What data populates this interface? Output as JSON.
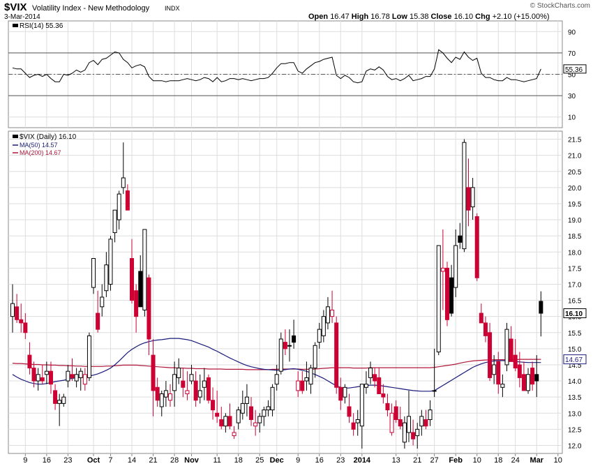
{
  "header": {
    "symbol": "$VIX",
    "name": "Volatility Index - New Methodology",
    "exchange": "INDX",
    "date": "3-Mar-2014",
    "watermark": "© StockCharts.com",
    "ohlc": {
      "open_label": "Open",
      "open": "16.47",
      "high_label": "High",
      "high": "16.78",
      "low_label": "Low",
      "low": "15.38",
      "close_label": "Close",
      "close": "16.10",
      "chg_label": "Chg",
      "chg": "+2.10 (+15.00%)"
    }
  },
  "rsi_panel": {
    "legend": "RSI(14) 55.36",
    "current_label": "55.36",
    "ticks": [
      90,
      70,
      50,
      30,
      10
    ],
    "ylim": [
      0,
      100
    ],
    "levels": [
      70,
      50,
      30
    ]
  },
  "price_panel": {
    "legend_main": "$VIX (Daily) 16.10",
    "legend_ma50": "MA(50) 14.57",
    "legend_ma200": "MA(200) 14.67",
    "current_label": "16.10",
    "ma_current_label": "14.67",
    "ticks": [
      "21.5",
      "21.0",
      "20.5",
      "20.0",
      "19.5",
      "19.0",
      "18.5",
      "18.0",
      "17.5",
      "17.0",
      "16.5",
      "16.0",
      "15.5",
      "15.0",
      "14.5",
      "14.0",
      "13.5",
      "13.0",
      "12.5",
      "12.0"
    ],
    "ylim": [
      11.75,
      21.75
    ]
  },
  "x_axis": {
    "labels": [
      {
        "text": "9",
        "i": 3,
        "bold": false
      },
      {
        "text": "16",
        "i": 8,
        "bold": false
      },
      {
        "text": "23",
        "i": 13,
        "bold": false
      },
      {
        "text": "Oct",
        "i": 19,
        "bold": true
      },
      {
        "text": "7",
        "i": 23,
        "bold": false
      },
      {
        "text": "14",
        "i": 28,
        "bold": false
      },
      {
        "text": "21",
        "i": 33,
        "bold": false
      },
      {
        "text": "28",
        "i": 38,
        "bold": false
      },
      {
        "text": "Nov",
        "i": 42,
        "bold": true
      },
      {
        "text": "11",
        "i": 48,
        "bold": false
      },
      {
        "text": "18",
        "i": 53,
        "bold": false
      },
      {
        "text": "25",
        "i": 58,
        "bold": false
      },
      {
        "text": "Dec",
        "i": 62,
        "bold": true
      },
      {
        "text": "9",
        "i": 67,
        "bold": false
      },
      {
        "text": "16",
        "i": 72,
        "bold": false
      },
      {
        "text": "23",
        "i": 77,
        "bold": false
      },
      {
        "text": "2014",
        "i": 82,
        "bold": true
      },
      {
        "text": "13",
        "i": 90,
        "bold": false
      },
      {
        "text": "21",
        "i": 95,
        "bold": false
      },
      {
        "text": "27",
        "i": 99,
        "bold": false
      },
      {
        "text": "Feb",
        "i": 104,
        "bold": true
      },
      {
        "text": "10",
        "i": 109,
        "bold": false
      },
      {
        "text": "18",
        "i": 114,
        "bold": false
      },
      {
        "text": "24",
        "i": 118,
        "bold": false
      },
      {
        "text": "Mar",
        "i": 123,
        "bold": true
      },
      {
        "text": "10",
        "i": 128,
        "bold": false
      }
    ]
  },
  "colors": {
    "up": "#000000",
    "down": "#cc0033",
    "ma50": "#1a1a7a",
    "ma200": "#b0163a",
    "grid": "#dddddd",
    "rsi_line": "#000000"
  },
  "chart_data": {
    "type": "candlestick",
    "title": "$VIX Volatility Index - New Methodology INDX",
    "x_unit": "trading day (0 = 3 Sep 2013)",
    "candles": [
      [
        0,
        16.0,
        17.0,
        15.5,
        16.4
      ],
      [
        1,
        16.3,
        16.7,
        15.8,
        15.9
      ],
      [
        2,
        15.9,
        16.4,
        15.5,
        15.8
      ],
      [
        3,
        15.8,
        16.1,
        15.3,
        15.5
      ],
      [
        4,
        14.8,
        15.2,
        14.2,
        14.4
      ],
      [
        5,
        14.4,
        14.6,
        13.8,
        14.0
      ],
      [
        6,
        14.0,
        14.4,
        13.7,
        14.2
      ],
      [
        7,
        14.1,
        14.5,
        13.9,
        14.0
      ],
      [
        8,
        14.2,
        14.6,
        13.9,
        14.3
      ],
      [
        9,
        14.3,
        14.6,
        13.6,
        13.9
      ],
      [
        10,
        13.7,
        13.9,
        13.1,
        13.3
      ],
      [
        11,
        13.3,
        13.6,
        12.6,
        13.4
      ],
      [
        12,
        13.3,
        13.6,
        13.2,
        13.5
      ],
      [
        13,
        14.0,
        14.5,
        13.8,
        14.3
      ],
      [
        14,
        14.2,
        14.7,
        14.0,
        14.1
      ],
      [
        15,
        14.0,
        14.4,
        13.8,
        14.2
      ],
      [
        16,
        14.1,
        14.4,
        13.7,
        14.3
      ],
      [
        17,
        13.9,
        14.4,
        13.7,
        14.2
      ],
      [
        18,
        14.1,
        15.5,
        14.0,
        15.4
      ],
      [
        19,
        16.9,
        17.8,
        16.7,
        17.8
      ],
      [
        20,
        16.1,
        16.8,
        15.5,
        15.6
      ],
      [
        21,
        16.3,
        17.0,
        16.0,
        16.6
      ],
      [
        22,
        16.8,
        18.0,
        16.6,
        17.6
      ],
      [
        23,
        17.0,
        18.5,
        16.8,
        18.4
      ],
      [
        24,
        18.6,
        19.3,
        18.3,
        19.3
      ],
      [
        25,
        19.0,
        19.9,
        18.7,
        19.8
      ],
      [
        26,
        20.0,
        21.4,
        19.8,
        20.3
      ],
      [
        27,
        19.9,
        20.1,
        19.3,
        19.3
      ],
      [
        28,
        17.8,
        18.4,
        16.4,
        16.5
      ],
      [
        29,
        16.8,
        17.0,
        15.5,
        16.0
      ],
      [
        30,
        17.4,
        17.9,
        16.3,
        16.3
      ],
      [
        31,
        16.2,
        18.7,
        16.0,
        18.7
      ],
      [
        32,
        17.2,
        17.3,
        14.8,
        15.3
      ],
      [
        33,
        14.8,
        15.3,
        12.9,
        13.7
      ],
      [
        34,
        13.8,
        14.1,
        13.2,
        13.4
      ],
      [
        35,
        13.2,
        13.7,
        12.9,
        13.6
      ],
      [
        36,
        13.5,
        14.0,
        13.2,
        13.7
      ],
      [
        37,
        13.4,
        13.9,
        13.2,
        13.6
      ],
      [
        38,
        13.7,
        14.6,
        13.2,
        14.2
      ],
      [
        39,
        14.1,
        14.7,
        13.9,
        14.4
      ],
      [
        40,
        14.0,
        14.4,
        13.5,
        13.8
      ],
      [
        41,
        13.6,
        14.3,
        13.4,
        13.7
      ],
      [
        42,
        14.0,
        14.5,
        13.9,
        14.2
      ],
      [
        43,
        14.0,
        14.3,
        13.2,
        13.4
      ],
      [
        44,
        13.5,
        14.2,
        13.3,
        13.7
      ],
      [
        45,
        13.8,
        14.4,
        13.4,
        14.0
      ],
      [
        46,
        14.1,
        14.2,
        13.3,
        13.4
      ],
      [
        47,
        13.4,
        13.8,
        12.8,
        13.1
      ],
      [
        48,
        13.0,
        13.7,
        12.7,
        12.9
      ],
      [
        49,
        12.8,
        13.2,
        12.5,
        12.6
      ],
      [
        50,
        12.6,
        13.0,
        12.4,
        12.9
      ],
      [
        51,
        12.9,
        13.3,
        12.5,
        12.6
      ],
      [
        52,
        12.3,
        12.6,
        12.2,
        12.4
      ],
      [
        53,
        12.7,
        13.2,
        12.5,
        13.1
      ],
      [
        54,
        13.0,
        13.7,
        12.8,
        13.3
      ],
      [
        55,
        13.3,
        13.9,
        12.9,
        13.5
      ],
      [
        56,
        13.2,
        13.5,
        12.6,
        12.8
      ],
      [
        57,
        12.6,
        13.1,
        12.3,
        12.7
      ],
      [
        58,
        12.7,
        13.0,
        12.4,
        12.9
      ],
      [
        59,
        12.9,
        13.2,
        12.6,
        13.1
      ],
      [
        60,
        13.1,
        13.4,
        12.9,
        13.2
      ],
      [
        61,
        13.1,
        13.9,
        12.9,
        13.8
      ],
      [
        62,
        13.9,
        14.5,
        13.7,
        14.2
      ],
      [
        63,
        14.3,
        15.5,
        14.2,
        15.3
      ],
      [
        64,
        15.2,
        15.6,
        14.8,
        15.0
      ],
      [
        65,
        15.1,
        15.6,
        14.6,
        15.1
      ],
      [
        66,
        15.4,
        15.9,
        15.0,
        15.2
      ],
      [
        67,
        13.7,
        14.3,
        13.5,
        14.0
      ],
      [
        68,
        14.0,
        14.3,
        13.6,
        13.7
      ],
      [
        69,
        14.0,
        14.6,
        13.7,
        14.1
      ],
      [
        70,
        13.9,
        14.5,
        13.6,
        14.4
      ],
      [
        71,
        14.4,
        15.2,
        14.1,
        15.1
      ],
      [
        72,
        15.2,
        15.8,
        15.0,
        15.6
      ],
      [
        73,
        15.4,
        16.2,
        15.2,
        16.0
      ],
      [
        74,
        15.8,
        16.6,
        15.6,
        16.3
      ],
      [
        75,
        16.0,
        16.8,
        15.8,
        16.2
      ],
      [
        76,
        15.8,
        16.0,
        13.6,
        13.8
      ],
      [
        77,
        13.8,
        14.1,
        13.1,
        13.4
      ],
      [
        78,
        13.5,
        13.9,
        13.3,
        13.8
      ],
      [
        79,
        13.2,
        13.6,
        12.7,
        12.9
      ],
      [
        80,
        12.7,
        13.0,
        12.3,
        12.5
      ],
      [
        81,
        12.7,
        13.1,
        12.3,
        12.8
      ],
      [
        82,
        12.6,
        13.9,
        11.9,
        13.9
      ],
      [
        83,
        13.8,
        14.3,
        13.6,
        13.9
      ],
      [
        84,
        14.1,
        14.6,
        13.9,
        14.4
      ],
      [
        85,
        14.2,
        14.4,
        13.8,
        14.0
      ],
      [
        86,
        14.1,
        14.4,
        13.6,
        13.6
      ],
      [
        87,
        13.6,
        13.9,
        13.3,
        13.5
      ],
      [
        88,
        13.3,
        13.6,
        12.9,
        13.1
      ],
      [
        89,
        12.4,
        13.3,
        12.3,
        13.0
      ],
      [
        90,
        13.2,
        13.4,
        12.7,
        12.8
      ],
      [
        91,
        12.8,
        13.2,
        12.5,
        12.6
      ],
      [
        92,
        12.1,
        12.9,
        11.9,
        12.7
      ],
      [
        93,
        12.4,
        13.7,
        12.1,
        12.9
      ],
      [
        94,
        12.4,
        12.8,
        12.0,
        12.2
      ],
      [
        95,
        12.3,
        12.7,
        11.9,
        12.5
      ],
      [
        96,
        12.6,
        13.1,
        12.3,
        12.9
      ],
      [
        97,
        12.8,
        13.1,
        12.5,
        12.6
      ],
      [
        98,
        12.8,
        13.4,
        12.6,
        13.1
      ],
      [
        99,
        13.7,
        15.0,
        13.5,
        13.7
      ],
      [
        100,
        14.9,
        18.2,
        14.8,
        18.2
      ],
      [
        101,
        17.4,
        18.7,
        16.2,
        17.5
      ],
      [
        102,
        17.5,
        17.7,
        15.7,
        15.9
      ],
      [
        103,
        17.2,
        17.6,
        16.0,
        16.1
      ],
      [
        104,
        16.9,
        18.7,
        16.6,
        18.2
      ],
      [
        105,
        18.5,
        18.9,
        18.1,
        18.3
      ],
      [
        106,
        18.1,
        21.5,
        18.0,
        21.4
      ],
      [
        107,
        20.0,
        20.9,
        18.8,
        19.3
      ],
      [
        108,
        19.4,
        20.3,
        19.0,
        20.0
      ],
      [
        109,
        19.1,
        19.2,
        17.1,
        17.2
      ],
      [
        110,
        16.1,
        16.4,
        15.8,
        15.8
      ],
      [
        111,
        15.8,
        16.0,
        15.2,
        15.4
      ],
      [
        112,
        15.5,
        15.8,
        14.0,
        14.1
      ],
      [
        113,
        14.2,
        14.8,
        13.9,
        14.5
      ],
      [
        114,
        14.6,
        14.9,
        13.6,
        13.9
      ],
      [
        115,
        13.8,
        14.2,
        13.5,
        13.9
      ],
      [
        116,
        14.5,
        15.8,
        14.3,
        15.6
      ],
      [
        117,
        15.3,
        15.7,
        14.6,
        14.6
      ],
      [
        118,
        14.8,
        15.3,
        14.3,
        14.4
      ],
      [
        119,
        14.5,
        14.9,
        13.8,
        14.1
      ],
      [
        120,
        14.2,
        14.6,
        13.7,
        13.7
      ],
      [
        121,
        13.7,
        14.4,
        13.6,
        14.2
      ],
      [
        122,
        14.4,
        14.6,
        13.7,
        13.9
      ],
      [
        123,
        14.2,
        14.8,
        13.5,
        14.0
      ],
      [
        124,
        16.47,
        16.78,
        15.38,
        16.1
      ]
    ],
    "rsi": [
      56,
      55,
      55,
      51,
      47,
      49,
      50,
      48,
      50,
      46,
      43,
      43,
      50,
      49,
      51,
      54,
      52,
      54,
      61,
      63,
      59,
      64,
      65,
      68,
      71,
      70,
      64,
      61,
      56,
      58,
      59,
      57,
      48,
      44,
      44,
      44,
      43,
      44,
      44,
      44,
      45,
      46,
      45,
      44,
      45,
      47,
      46,
      43,
      47,
      43,
      44,
      46,
      46,
      45,
      46,
      45,
      44,
      45,
      46,
      46,
      47,
      51,
      56,
      60,
      60,
      61,
      61,
      53,
      51,
      55,
      58,
      61,
      62,
      64,
      65,
      66,
      49,
      46,
      49,
      47,
      43,
      42,
      43,
      53,
      55,
      54,
      57,
      54,
      48,
      45,
      46,
      44,
      46,
      49,
      44,
      45,
      46,
      48,
      48,
      55,
      73,
      70,
      65,
      61,
      66,
      64,
      71,
      66,
      63,
      65,
      51,
      47,
      47,
      45,
      44,
      44,
      47,
      45,
      45,
      44,
      43,
      44,
      45,
      46,
      55
    ],
    "ma50": [
      14.2,
      14.12,
      14.05,
      14.0,
      13.95,
      13.92,
      13.9,
      13.9,
      13.92,
      13.95,
      13.98,
      14.0,
      14.02,
      14.05,
      14.08,
      14.1,
      14.12,
      14.13,
      14.15,
      14.18,
      14.22,
      14.27,
      14.33,
      14.4,
      14.5,
      14.62,
      14.75,
      14.88,
      14.98,
      15.06,
      15.13,
      15.18,
      15.22,
      15.25,
      15.27,
      15.28,
      15.3,
      15.32,
      15.32,
      15.32,
      15.3,
      15.28,
      15.25,
      15.2,
      15.15,
      15.1,
      15.05,
      14.98,
      14.92,
      14.85,
      14.78,
      14.71,
      14.65,
      14.59,
      14.53,
      14.48,
      14.44,
      14.41,
      14.38,
      14.36,
      14.35,
      14.34,
      14.33,
      14.33,
      14.35,
      14.37,
      14.38,
      14.36,
      14.33,
      14.3,
      14.25,
      14.2,
      14.14,
      14.08,
      14.0,
      13.92,
      13.85,
      13.8,
      13.78,
      13.78,
      13.8,
      13.82,
      13.84,
      13.86,
      13.87,
      13.87,
      13.86,
      13.84,
      13.82,
      13.8,
      13.78,
      13.76,
      13.74,
      13.72,
      13.7,
      13.69,
      13.68,
      13.68,
      13.68,
      13.7,
      13.78,
      13.86,
      13.94,
      14.02,
      14.1,
      14.18,
      14.26,
      14.34,
      14.42,
      14.48,
      14.53,
      14.57,
      14.6,
      14.62,
      14.63,
      14.63,
      14.62,
      14.61,
      14.6,
      14.59,
      14.58,
      14.57,
      14.57,
      14.57,
      14.57
    ],
    "ma200": [
      14.55,
      14.54,
      14.54,
      14.53,
      14.52,
      14.51,
      14.51,
      14.5,
      14.5,
      14.49,
      14.49,
      14.48,
      14.48,
      14.47,
      14.47,
      14.46,
      14.46,
      14.45,
      14.45,
      14.45,
      14.45,
      14.45,
      14.46,
      14.46,
      14.47,
      14.48,
      14.49,
      14.49,
      14.49,
      14.49,
      14.48,
      14.47,
      14.46,
      14.45,
      14.44,
      14.43,
      14.42,
      14.41,
      14.41,
      14.4,
      14.4,
      14.39,
      14.39,
      14.38,
      14.38,
      14.38,
      14.37,
      14.37,
      14.37,
      14.37,
      14.36,
      14.36,
      14.36,
      14.36,
      14.36,
      14.35,
      14.35,
      14.35,
      14.35,
      14.35,
      14.35,
      14.36,
      14.36,
      14.37,
      14.37,
      14.37,
      14.37,
      14.37,
      14.36,
      14.36,
      14.36,
      14.37,
      14.38,
      14.39,
      14.4,
      14.41,
      14.41,
      14.41,
      14.41,
      14.41,
      14.4,
      14.4,
      14.4,
      14.4,
      14.41,
      14.41,
      14.41,
      14.41,
      14.41,
      14.41,
      14.41,
      14.41,
      14.41,
      14.41,
      14.41,
      14.41,
      14.41,
      14.41,
      14.41,
      14.42,
      14.44,
      14.46,
      14.48,
      14.5,
      14.52,
      14.55,
      14.58,
      14.6,
      14.62,
      14.63,
      14.64,
      14.65,
      14.65,
      14.66,
      14.66,
      14.66,
      14.66,
      14.66,
      14.66,
      14.67,
      14.67,
      14.67,
      14.67,
      14.67,
      14.67
    ],
    "rsi_ylim": [
      0,
      100
    ],
    "price_ylim": [
      11.75,
      21.75
    ]
  }
}
